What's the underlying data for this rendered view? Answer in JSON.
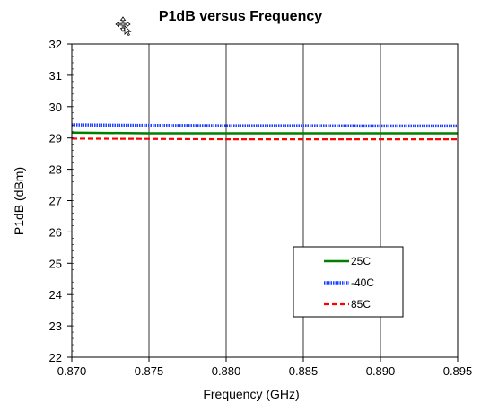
{
  "chart_data": {
    "type": "line",
    "title": "P1dB versus Frequency",
    "xlabel": "Frequency (GHz)",
    "ylabel": "P1dB (dBm)",
    "xlim": [
      0.87,
      0.895
    ],
    "ylim": [
      22,
      32
    ],
    "xticks": [
      "0.870",
      "0.875",
      "0.880",
      "0.885",
      "0.890",
      "0.895"
    ],
    "yticks": [
      "22",
      "23",
      "24",
      "25",
      "26",
      "27",
      "28",
      "29",
      "30",
      "31",
      "32"
    ],
    "grid": true,
    "legend_position": "bottom-right",
    "series": [
      {
        "name": "25C",
        "color": "#008000",
        "style": "solid",
        "x": [
          0.87,
          0.875,
          0.88,
          0.885,
          0.89,
          0.895
        ],
        "y": [
          29.17,
          29.15,
          29.15,
          29.15,
          29.15,
          29.15
        ]
      },
      {
        "name": "-40C",
        "color": "#1f3fff",
        "style": "dotted-thick",
        "x": [
          0.87,
          0.875,
          0.88,
          0.885,
          0.89,
          0.895
        ],
        "y": [
          29.42,
          29.4,
          29.39,
          29.39,
          29.38,
          29.38
        ]
      },
      {
        "name": "85C",
        "color": "#ff0000",
        "style": "dashed",
        "x": [
          0.87,
          0.875,
          0.88,
          0.885,
          0.89,
          0.895
        ],
        "y": [
          28.98,
          28.97,
          28.96,
          28.96,
          28.96,
          28.96
        ]
      }
    ]
  },
  "cursor_icon": "move-cursor-icon"
}
